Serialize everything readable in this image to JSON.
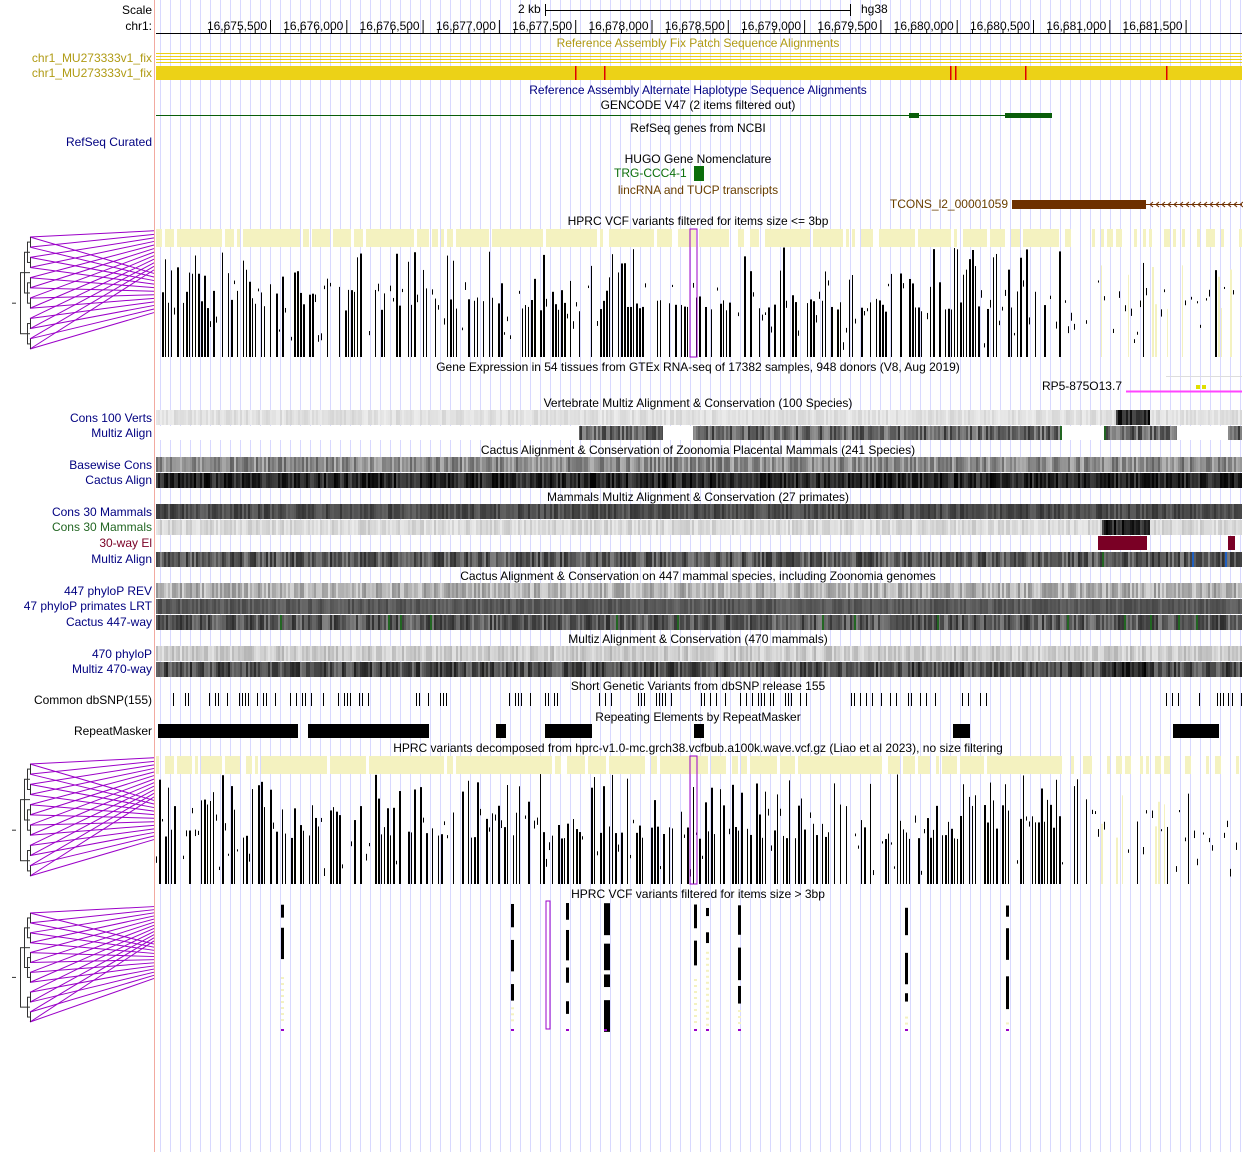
{
  "ruler": {
    "scale_label": "Scale",
    "scale_text": "2 kb",
    "assembly": "hg38",
    "chrom_label": "chr1:",
    "ticks": [
      "16,675,500",
      "16,676,000",
      "16,676,500",
      "16,677,000",
      "16,677,500",
      "16,678,000",
      "16,678,500",
      "16,679,000",
      "16,679,500",
      "16,680,000",
      "16,680,500",
      "16,681,000",
      "16,681,500"
    ]
  },
  "colors": {
    "left_border": "#f2aaa0",
    "grid_line": "#d8d8ff",
    "fix_patch": "#ecd217",
    "fix_label": "#b09b15",
    "gencode_green": "#0a5e0a",
    "hugo_green": "#0b6e0b",
    "tucp_brown": "#6e3000",
    "tucp_label": "#6a3f00",
    "link_blue": "#000080",
    "purple": "#9b00c8",
    "pale_yellow": "#f4f2c0",
    "gtex_pink": "#ff44ff",
    "el_red": "#7a0025",
    "cons_green": "#226622"
  },
  "tracks": {
    "fix_title": "Reference Assembly Fix Patch Sequence Alignments",
    "fix_label_1": "chr1_MU273333v1_fix",
    "fix_label_2": "chr1_MU273333v1_fix",
    "alt_title": "Reference Assembly Alternate Haplotype Sequence Alignments",
    "gencode_title": "GENCODE V47 (2 items filtered out)",
    "refseq_title": "RefSeq genes from NCBI",
    "refseq_label": "RefSeq Curated",
    "hugo_title": "HUGO Gene Nomenclature",
    "hugo_item": "TRG-CCC4-1",
    "lincrna_title": "lincRNA and TUCP transcripts",
    "tcons_item": "TCONS_l2_00001059",
    "hprc_small_title": "HPRC VCF variants filtered for items size <= 3bp",
    "gtex_title": "Gene Expression in 54 tissues from GTEx RNA-seq of 17382 samples, 948 donors (V8, Aug 2019)",
    "gtex_item": "RP5-875O13.7",
    "vert_title": "Vertebrate Multiz Alignment & Conservation (100 Species)",
    "vert_cons_label": "Cons 100 Verts",
    "vert_align_label": "Multiz Align",
    "cactus241_title": "Cactus Alignment & Conservation of Zoonomia Placental Mammals (241 Species)",
    "cactus241_cons_label": "Basewise Cons",
    "cactus241_align_label": "Cactus Align",
    "mammals_title": "Mammals Multiz Alignment & Conservation (27 primates)",
    "mammals_cons1_label": "Cons 30 Mammals",
    "mammals_cons2_label": "Cons 30 Mammals",
    "mammals_el_label": "30-way El",
    "mammals_align_label": "Multiz Align",
    "cactus447_title": "Cactus Alignment & Conservation on 447 mammal species, including Zoonomia genomes",
    "cactus447_rev_label": "447 phyloP REV",
    "cactus447_lrt_label": "47 phyloP primates LRT",
    "cactus447_align_label": "Cactus 447-way",
    "multiz470_title": "Multiz Alignment & Conservation (470 mammals)",
    "multiz470_phylop_label": "470 phyloP",
    "multiz470_align_label": "Multiz 470-way",
    "dbsnp_title": "Short Genetic Variants from dbSNP release 155",
    "dbsnp_label": "Common dbSNP(155)",
    "rmsk_title": "Repeating Elements by RepeatMasker",
    "rmsk_label": "RepeatMasker",
    "hprc_all_title": "HPRC variants decomposed from hprc-v1.0-mc.grch38.vcfbub.a100k.wave.vcf.gz (Liao et al 2023), no size filtering",
    "hprc_large_title": "HPRC VCF variants filtered for items size > 3bp"
  }
}
